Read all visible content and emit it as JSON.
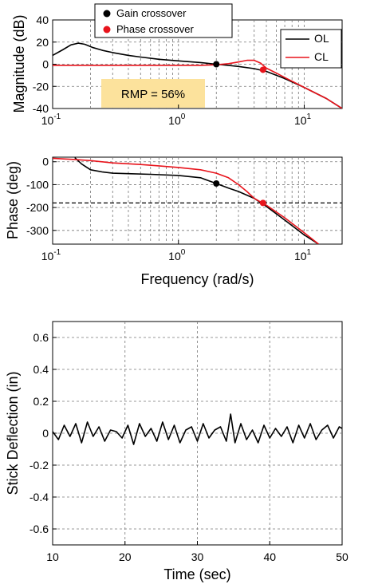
{
  "colors": {
    "ol": "#000000",
    "cl": "#e8141c",
    "gain": "#000000",
    "phase": "#e8141c",
    "annotation_bg": "#fce29c"
  },
  "chart_data": [
    {
      "type": "line",
      "xscale": "log",
      "xlim": [
        0.1,
        20
      ],
      "ylim": [
        -40,
        40
      ],
      "x_ticks": [
        0.1,
        1,
        10
      ],
      "x_tick_labels": [
        [
          "10",
          "-1"
        ],
        [
          "10",
          "0"
        ],
        [
          "10",
          "1"
        ]
      ],
      "y_ticks": [
        -40,
        -20,
        0,
        20,
        40
      ],
      "y_tick_labels": [
        "-40",
        "-20",
        "0",
        "20",
        "40"
      ],
      "ylabel": "Magnitude (dB)",
      "grid": true,
      "legend": {
        "placement": "top-right",
        "entries": [
          "OL",
          "CL"
        ]
      },
      "marker_legend": {
        "placement": "top-left",
        "entries": [
          "Gain crossover",
          "Phase crossover"
        ]
      },
      "annotation": "RMP = 56%",
      "series": [
        {
          "name": "OL",
          "x": [
            0.1,
            0.12,
            0.14,
            0.16,
            0.18,
            0.21,
            0.25,
            0.3,
            0.4,
            0.5,
            0.7,
            1,
            1.5,
            2,
            2.5,
            3,
            4,
            5,
            7,
            10,
            15,
            20
          ],
          "y": [
            8,
            13,
            17.5,
            19,
            18,
            15,
            12.5,
            10.5,
            8,
            6.5,
            4.5,
            3,
            1.5,
            0,
            -1,
            -2,
            -4,
            -6.5,
            -13,
            -21,
            -31,
            -40
          ]
        },
        {
          "name": "CL",
          "x": [
            0.1,
            0.2,
            0.4,
            0.7,
            1,
            1.5,
            2,
            2.5,
            3,
            3.5,
            4,
            4.5,
            5,
            6,
            7,
            10,
            15,
            20
          ],
          "y": [
            -1,
            -1,
            -1,
            -1,
            -1,
            -1,
            -0.5,
            0.5,
            2,
            3.5,
            3.5,
            1,
            -3.5,
            -8,
            -12,
            -21,
            -31,
            -40
          ]
        }
      ],
      "points": [
        {
          "name": "Gain crossover",
          "x": 2.0,
          "y": 0
        },
        {
          "name": "Phase crossover",
          "x": 4.7,
          "y": -5
        }
      ]
    },
    {
      "type": "line",
      "xscale": "log",
      "xlim": [
        0.1,
        20
      ],
      "ylim": [
        -360,
        20
      ],
      "x_ticks": [
        0.1,
        1,
        10
      ],
      "x_tick_labels": [
        [
          "10",
          "-1"
        ],
        [
          "10",
          "0"
        ],
        [
          "10",
          "1"
        ]
      ],
      "y_ticks": [
        -300,
        -200,
        -100,
        0
      ],
      "y_tick_labels": [
        "-300",
        "-200",
        "-100",
        "0"
      ],
      "xlabel": "Frequency (rad/s)",
      "ylabel": "Phase (deg)",
      "grid": true,
      "reference_line": -180,
      "series": [
        {
          "name": "OL",
          "x": [
            0.15,
            0.17,
            0.2,
            0.25,
            0.3,
            0.4,
            0.6,
            1,
            1.5,
            2,
            2.5,
            3,
            4,
            5,
            7,
            10,
            13
          ],
          "y": [
            18,
            -10,
            -35,
            -45,
            -50,
            -52,
            -55,
            -60,
            -70,
            -95,
            -115,
            -130,
            -160,
            -195,
            -255,
            -320,
            -360
          ]
        },
        {
          "name": "CL",
          "x": [
            0.1,
            0.15,
            0.2,
            0.3,
            0.5,
            0.7,
            1,
            1.5,
            2,
            2.5,
            3,
            3.5,
            4,
            5,
            7,
            10,
            13
          ],
          "y": [
            15,
            10,
            5,
            -5,
            -12,
            -18,
            -25,
            -35,
            -50,
            -70,
            -100,
            -130,
            -160,
            -190,
            -245,
            -310,
            -360
          ]
        }
      ],
      "points": [
        {
          "name": "Gain crossover",
          "x": 2.0,
          "y": -95
        },
        {
          "name": "Phase crossover",
          "x": 4.7,
          "y": -180
        }
      ]
    },
    {
      "type": "line",
      "xlim": [
        10,
        50
      ],
      "ylim": [
        -0.7,
        0.7
      ],
      "x_ticks": [
        10,
        20,
        30,
        40,
        50
      ],
      "x_tick_labels": [
        "10",
        "20",
        "30",
        "40",
        "50"
      ],
      "y_ticks": [
        -0.6,
        -0.4,
        -0.2,
        0,
        0.2,
        0.4,
        0.6
      ],
      "y_tick_labels": [
        "-0.6",
        "-0.4",
        "-0.2",
        "0",
        "0.2",
        "0.4",
        "0.6"
      ],
      "xlabel": "Time (sec)",
      "ylabel": "Stick Deflection (in)",
      "grid": true,
      "series": [
        {
          "x": [
            10,
            10.8,
            11.6,
            12.4,
            13.2,
            14,
            14.8,
            15.6,
            16.4,
            17.2,
            18,
            18.8,
            19.6,
            20.4,
            21.2,
            22,
            22.8,
            23.6,
            24.4,
            25.2,
            26,
            26.8,
            27.6,
            28.4,
            29.2,
            30,
            30.8,
            31.6,
            32.4,
            33.2,
            34,
            34.6,
            35.2,
            36,
            36.8,
            37.6,
            38.4,
            39.2,
            40,
            40.8,
            41.6,
            42.4,
            43.2,
            44,
            44.8,
            45.6,
            46.4,
            47.2,
            48,
            48.8,
            49.6,
            50
          ],
          "y": [
            0.01,
            -0.04,
            0.05,
            -0.02,
            0.06,
            -0.06,
            0.07,
            -0.02,
            0.04,
            -0.05,
            0.02,
            0.01,
            -0.03,
            0.05,
            -0.07,
            0.06,
            -0.02,
            0.03,
            -0.05,
            0.07,
            -0.04,
            0.05,
            -0.06,
            0.02,
            0.04,
            -0.05,
            0.06,
            -0.03,
            0.02,
            0.04,
            -0.05,
            0.12,
            -0.06,
            0.06,
            -0.04,
            0.02,
            -0.06,
            0.05,
            -0.03,
            0.03,
            -0.02,
            0.04,
            -0.06,
            0.05,
            -0.03,
            0.06,
            -0.04,
            0.02,
            0.05,
            -0.03,
            0.04,
            0.03
          ]
        }
      ]
    }
  ]
}
